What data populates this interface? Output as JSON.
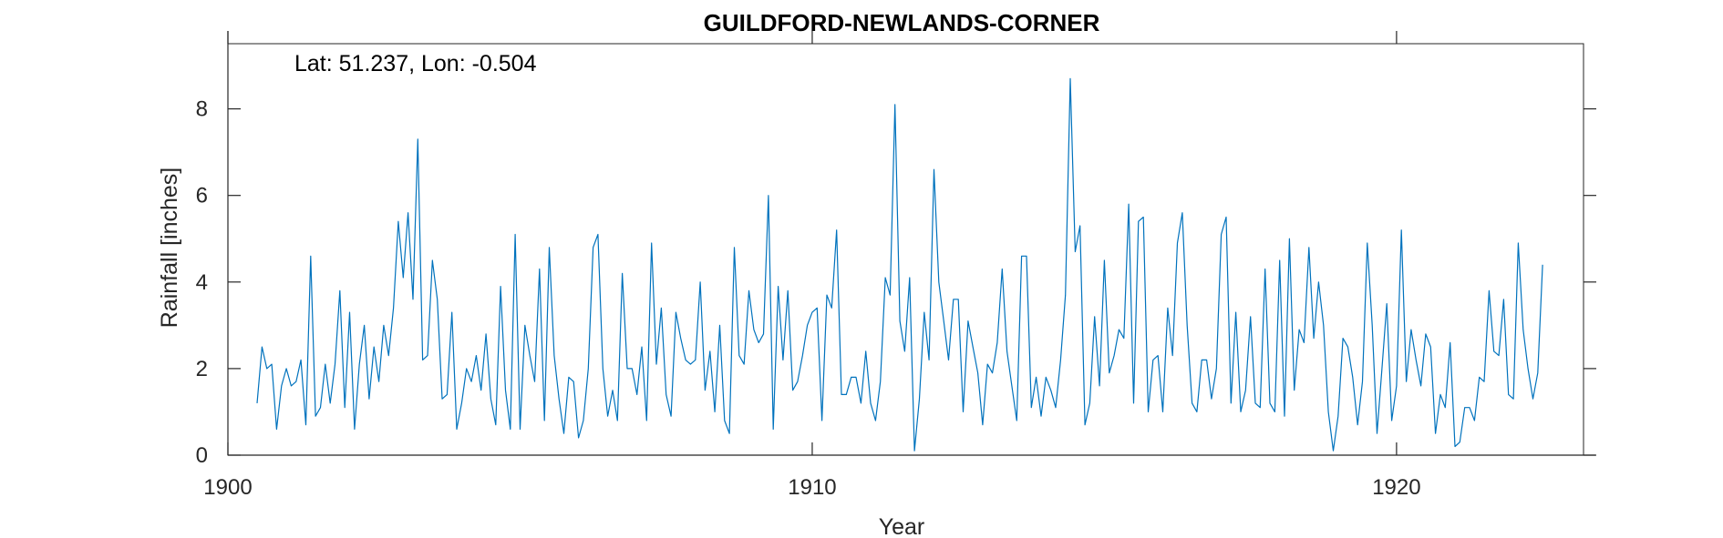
{
  "chart_data": {
    "type": "line",
    "title": "GUILDFORD-NEWLANDS-CORNER",
    "annotation": "Lat: 51.237, Lon: -0.504",
    "xlabel": "Year",
    "ylabel": "Rainfall [inches]",
    "xlim": [
      1900,
      1923.2
    ],
    "ylim": [
      0,
      9.8
    ],
    "xticks": [
      1900,
      1910,
      1920
    ],
    "yticks": [
      0,
      2,
      4,
      6,
      8
    ],
    "grid": false,
    "line_color": "#0072BD",
    "x_start": 1900.5,
    "x_step_months": 1,
    "series": [
      {
        "values": [
          1.2,
          2.5,
          2.0,
          2.1,
          0.6,
          1.6,
          2.0,
          1.6,
          1.7,
          2.2,
          0.7,
          4.6,
          0.9,
          1.1,
          2.1,
          1.2,
          2.1,
          3.8,
          1.1,
          3.3,
          0.6,
          2.1,
          3.0,
          1.3,
          2.5,
          1.7,
          3.0,
          2.3,
          3.4,
          5.4,
          4.1,
          5.6,
          3.6,
          7.3,
          2.2,
          2.3,
          4.5,
          3.6,
          1.3,
          1.4,
          3.3,
          0.6,
          1.2,
          2.0,
          1.7,
          2.3,
          1.5,
          2.8,
          1.3,
          0.7,
          3.9,
          1.5,
          0.6,
          5.1,
          0.6,
          3.0,
          2.3,
          1.7,
          4.3,
          0.8,
          4.8,
          2.3,
          1.3,
          0.5,
          1.8,
          1.7,
          0.4,
          0.8,
          2.0,
          4.8,
          5.1,
          2.0,
          0.9,
          1.5,
          0.8,
          4.2,
          2.0,
          2.0,
          1.4,
          2.5,
          0.8,
          4.9,
          2.1,
          3.4,
          1.4,
          0.9,
          3.3,
          2.7,
          2.2,
          2.1,
          2.2,
          4.0,
          1.5,
          2.4,
          1.0,
          3.0,
          0.8,
          0.5,
          4.8,
          2.3,
          2.1,
          3.8,
          2.9,
          2.6,
          2.8,
          6.0,
          0.6,
          3.9,
          2.2,
          3.8,
          1.5,
          1.7,
          2.3,
          3.0,
          3.3,
          3.4,
          0.8,
          3.7,
          3.4,
          5.2,
          1.4,
          1.4,
          1.8,
          1.8,
          1.2,
          2.4,
          1.2,
          0.8,
          1.7,
          4.1,
          3.7,
          8.1,
          3.1,
          2.4,
          4.1,
          0.1,
          1.3,
          3.3,
          2.2,
          6.6,
          4.0,
          3.1,
          2.2,
          3.6,
          3.6,
          1.0,
          3.1,
          2.5,
          1.9,
          0.7,
          2.1,
          1.9,
          2.6,
          4.3,
          2.4,
          1.6,
          0.8,
          4.6,
          4.6,
          1.1,
          1.8,
          0.9,
          1.8,
          1.5,
          1.1,
          2.2,
          3.7,
          8.7,
          4.7,
          5.3,
          0.7,
          1.2,
          3.2,
          1.6,
          4.5,
          1.9,
          2.3,
          2.9,
          2.7,
          5.8,
          1.2,
          5.4,
          5.5,
          1.0,
          2.2,
          2.3,
          1.0,
          3.4,
          2.3,
          4.9,
          5.6,
          3.0,
          1.2,
          1.0,
          2.2,
          2.2,
          1.3,
          2.0,
          5.1,
          5.5,
          1.2,
          3.3,
          1.0,
          1.5,
          3.2,
          1.2,
          1.1,
          4.3,
          1.2,
          1.0,
          4.5,
          0.9,
          5.0,
          1.5,
          2.9,
          2.6,
          4.8,
          2.7,
          4.0,
          3.0,
          1.0,
          0.1,
          0.9,
          2.7,
          2.5,
          1.8,
          0.7,
          1.7,
          4.9,
          3.0,
          0.5,
          2.0,
          3.5,
          0.8,
          1.6,
          5.2,
          1.7,
          2.9,
          2.2,
          1.6,
          2.8,
          2.5,
          0.5,
          1.4,
          1.1,
          2.6,
          0.2,
          0.3,
          1.1,
          1.1,
          0.8,
          1.8,
          1.7,
          3.8,
          2.4,
          2.3,
          3.6,
          1.4,
          1.3,
          4.9,
          2.9,
          2.0,
          1.3,
          1.9,
          4.4
        ]
      }
    ]
  }
}
